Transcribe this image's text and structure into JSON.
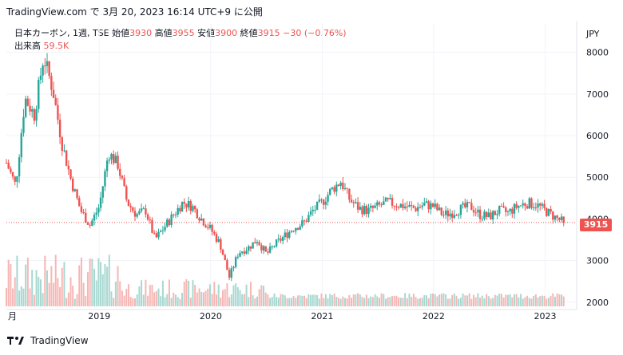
{
  "header": {
    "text": "TradingView.com で 3月 20, 2023 16:14 UTC+9 に公開"
  },
  "legend": {
    "symbol": "日本カーボン, 1週, TSE",
    "open_label": "始値",
    "open": "3930",
    "high_label": "高値",
    "high": "3955",
    "low_label": "安値",
    "low": "3900",
    "close_label": "終値",
    "close": "3915",
    "change": "−30 (−0.76%)",
    "volume_label": "出来高",
    "volume": "59.5K"
  },
  "currency": "JPY",
  "price_badge": "3915",
  "footer": {
    "brand": "TradingView",
    "logo_icon": "tradingview-logo-icon"
  },
  "colors": {
    "up": "#26a69a",
    "down": "#ef5350",
    "grid": "#f0f3fa",
    "volume_up": "#a7d8d1",
    "volume_down": "#f6b6b4"
  },
  "chart_data": {
    "type": "candlestick",
    "x_ticks": [
      "月",
      "2019",
      "2020",
      "2021",
      "2022",
      "2023"
    ],
    "y_ticks": [
      2000,
      3000,
      4000,
      5000,
      6000,
      7000,
      8000
    ],
    "ylim": [
      1900,
      8300
    ],
    "last_price": 3915,
    "close_path": [
      [
        "2018-03",
        5350
      ],
      [
        "2018-04",
        4800
      ],
      [
        "2018-05",
        6900
      ],
      [
        "2018-06",
        6500
      ],
      [
        "2018-07",
        7900
      ],
      [
        "2018-08",
        7100
      ],
      [
        "2018-09",
        5800
      ],
      [
        "2018-10",
        4900
      ],
      [
        "2018-11",
        4200
      ],
      [
        "2018-12",
        3850
      ],
      [
        "2019-01",
        4300
      ],
      [
        "2019-02",
        5600
      ],
      [
        "2019-03",
        5300
      ],
      [
        "2019-04",
        4400
      ],
      [
        "2019-05",
        4100
      ],
      [
        "2019-06",
        4200
      ],
      [
        "2019-07",
        3500
      ],
      [
        "2019-08",
        3800
      ],
      [
        "2019-09",
        4100
      ],
      [
        "2019-10",
        4400
      ],
      [
        "2019-11",
        4300
      ],
      [
        "2019-12",
        4000
      ],
      [
        "2020-01",
        3750
      ],
      [
        "2020-02",
        3400
      ],
      [
        "2020-03",
        2600
      ],
      [
        "2020-04",
        3200
      ],
      [
        "2020-05",
        3300
      ],
      [
        "2020-06",
        3500
      ],
      [
        "2020-07",
        3150
      ],
      [
        "2020-08",
        3400
      ],
      [
        "2020-09",
        3600
      ],
      [
        "2020-10",
        3800
      ],
      [
        "2020-11",
        3900
      ],
      [
        "2020-12",
        4200
      ],
      [
        "2021-01",
        4400
      ],
      [
        "2021-02",
        4700
      ],
      [
        "2021-03",
        4900
      ],
      [
        "2021-04",
        4450
      ],
      [
        "2021-05",
        4250
      ],
      [
        "2021-06",
        4200
      ],
      [
        "2021-07",
        4300
      ],
      [
        "2021-08",
        4400
      ],
      [
        "2021-09",
        4350
      ],
      [
        "2021-10",
        4300
      ],
      [
        "2021-11",
        4250
      ],
      [
        "2021-12",
        4350
      ],
      [
        "2022-01",
        4300
      ],
      [
        "2022-02",
        4100
      ],
      [
        "2022-03",
        4150
      ],
      [
        "2022-04",
        4250
      ],
      [
        "2022-05",
        4300
      ],
      [
        "2022-06",
        4100
      ],
      [
        "2022-07",
        4050
      ],
      [
        "2022-08",
        4200
      ],
      [
        "2022-09",
        4150
      ],
      [
        "2022-10",
        4300
      ],
      [
        "2022-11",
        4380
      ],
      [
        "2022-12",
        4350
      ],
      [
        "2023-01",
        4200
      ],
      [
        "2023-02",
        4050
      ],
      [
        "2023-03",
        3915
      ]
    ]
  }
}
